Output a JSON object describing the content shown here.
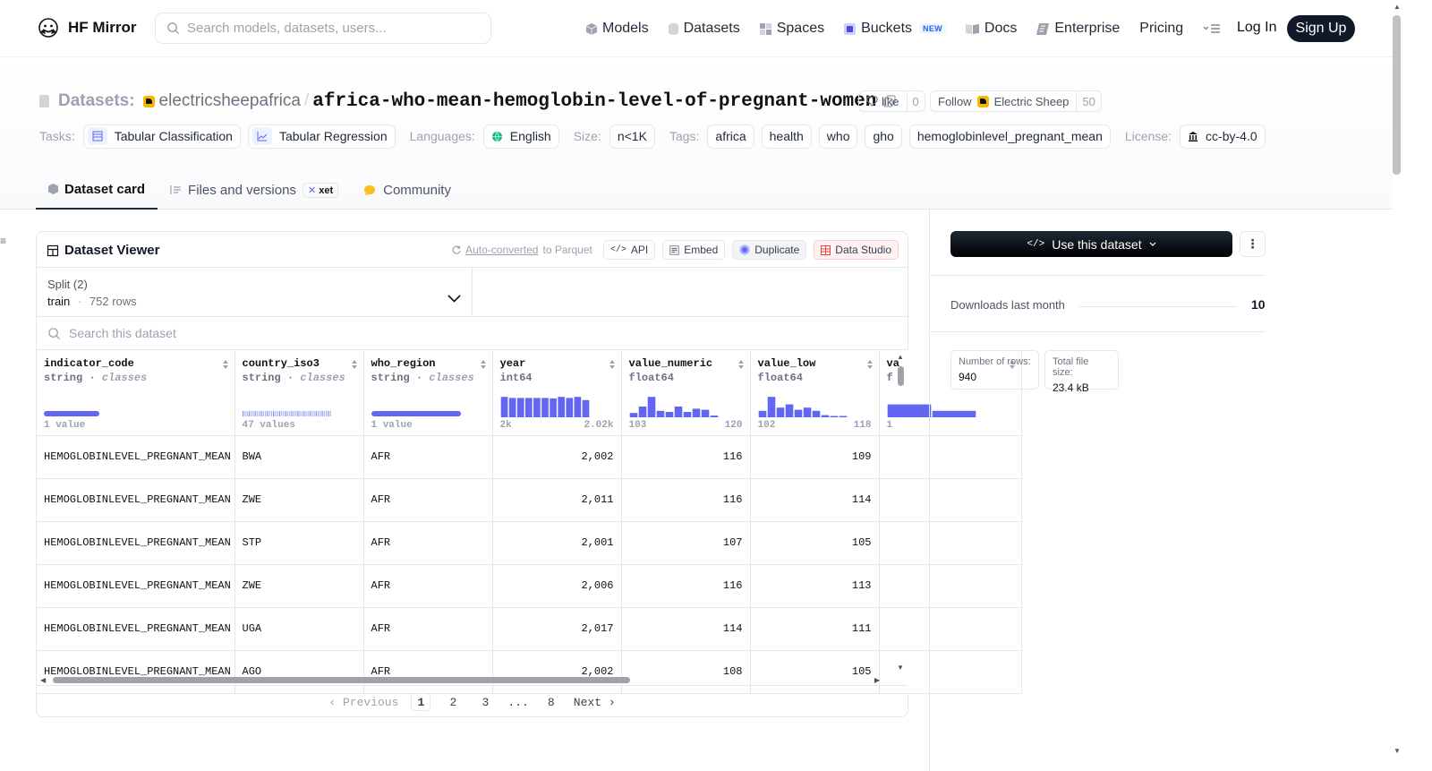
{
  "nav": {
    "brand": "HF Mirror",
    "search_placeholder": "Search models, datasets, users...",
    "links": [
      {
        "label": "Models",
        "icon": "models-icon"
      },
      {
        "label": "Datasets",
        "icon": "datasets-icon"
      },
      {
        "label": "Spaces",
        "icon": "spaces-icon"
      },
      {
        "label": "Buckets",
        "icon": "buckets-icon",
        "badge": "NEW"
      },
      {
        "label": "Docs",
        "icon": "docs-icon"
      },
      {
        "label": "Enterprise",
        "icon": "enterprise-icon"
      },
      {
        "label": "Pricing"
      }
    ],
    "login": "Log In",
    "signup": "Sign Up"
  },
  "header": {
    "type_label": "Datasets:",
    "owner": "electricsheepafrica",
    "slash": "/",
    "repo": "africa-who-mean-hemoglobin-level-of-pregnant-women",
    "like_label": "like",
    "like_count": "0",
    "follow_label": "Follow",
    "follow_org": "Electric Sheep",
    "follow_count": "50"
  },
  "meta": {
    "tasks_label": "Tasks:",
    "tasks": [
      "Tabular Classification",
      "Tabular Regression"
    ],
    "languages_label": "Languages:",
    "language": "English",
    "size_label": "Size:",
    "size": "n<1K",
    "tags_label": "Tags:",
    "tags": [
      "africa",
      "health",
      "who",
      "gho",
      "hemoglobinlevel_pregnant_mean"
    ],
    "license_label": "License:",
    "license": "cc-by-4.0"
  },
  "tabs": [
    {
      "label": "Dataset card",
      "active": true
    },
    {
      "label": "Files and versions",
      "badge": "xet"
    },
    {
      "label": "Community"
    }
  ],
  "viewer": {
    "title": "Dataset Viewer",
    "auto_converted": "Auto-converted",
    "auto_suffix": "to Parquet",
    "api": "API",
    "embed": "Embed",
    "duplicate": "Duplicate",
    "studio": "Data Studio",
    "split_label": "Split (2)",
    "split_name": "train",
    "split_sep": "·",
    "split_rows": "752 rows",
    "search_placeholder": "Search this dataset",
    "columns": [
      {
        "name": "indicator_code",
        "type": "string",
        "kind": "classes",
        "foot_l": "1 value",
        "foot_r": "",
        "viz": "bar-single"
      },
      {
        "name": "country_iso3",
        "type": "string",
        "kind": "classes",
        "foot_l": "47 values",
        "foot_r": "",
        "viz": "bar-multi"
      },
      {
        "name": "who_region",
        "type": "string",
        "kind": "classes",
        "foot_l": "1 value",
        "foot_r": "",
        "viz": "bar-single"
      },
      {
        "name": "year",
        "type": "int64",
        "kind": "",
        "foot_l": "2k",
        "foot_r": "2.02k",
        "viz": "hist",
        "hist": [
          0.95,
          0.9,
          0.9,
          0.9,
          0.9,
          0.9,
          0.88,
          0.95,
          0.9,
          0.95,
          0.8
        ]
      },
      {
        "name": "value_numeric",
        "type": "float64",
        "kind": "",
        "foot_l": "103",
        "foot_r": "120",
        "viz": "hist",
        "hist": [
          0.2,
          0.5,
          0.95,
          0.3,
          0.25,
          0.5,
          0.25,
          0.4,
          0.35,
          0.08
        ]
      },
      {
        "name": "value_low",
        "type": "float64",
        "kind": "",
        "foot_l": "102",
        "foot_r": "118",
        "viz": "hist",
        "hist": [
          0.3,
          0.95,
          0.45,
          0.6,
          0.35,
          0.45,
          0.3,
          0.1,
          0.05,
          0.05
        ]
      },
      {
        "name": "va",
        "type": "f",
        "kind": "",
        "foot_l": "1",
        "foot_r": "",
        "viz": "hist",
        "hist": [
          0.6,
          0.3
        ]
      }
    ],
    "rows": [
      [
        "HEMOGLOBINLEVEL_PREGNANT_MEAN",
        "BWA",
        "AFR",
        "2,002",
        "116",
        "109",
        ""
      ],
      [
        "HEMOGLOBINLEVEL_PREGNANT_MEAN",
        "ZWE",
        "AFR",
        "2,011",
        "116",
        "114",
        ""
      ],
      [
        "HEMOGLOBINLEVEL_PREGNANT_MEAN",
        "STP",
        "AFR",
        "2,001",
        "107",
        "105",
        ""
      ],
      [
        "HEMOGLOBINLEVEL_PREGNANT_MEAN",
        "ZWE",
        "AFR",
        "2,006",
        "116",
        "113",
        ""
      ],
      [
        "HEMOGLOBINLEVEL_PREGNANT_MEAN",
        "UGA",
        "AFR",
        "2,017",
        "114",
        "111",
        ""
      ],
      [
        "HEMOGLOBINLEVEL_PREGNANT_MEAN",
        "AGO",
        "AFR",
        "2,002",
        "108",
        "105",
        ""
      ]
    ],
    "pager": {
      "prev": "Previous",
      "pages": [
        "1",
        "2",
        "3",
        "...",
        "8"
      ],
      "current": "1",
      "next": "Next"
    }
  },
  "side": {
    "use_label": "Use this dataset",
    "downloads_label": "Downloads last month",
    "downloads": "10",
    "rows_label": "Number of rows:",
    "rows_value": "940",
    "size_label": "Total file size:",
    "size_value": "23.4 kB"
  },
  "colors": {
    "accent": "#6366f1",
    "dark": "#111827",
    "border": "#e5e7eb"
  }
}
